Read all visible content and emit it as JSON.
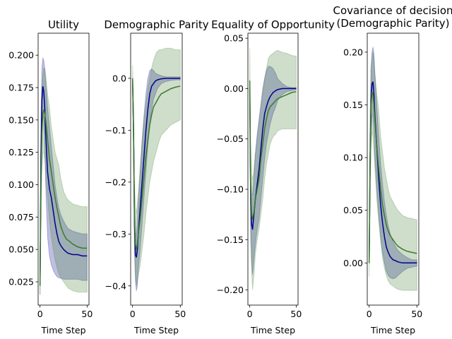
{
  "chart_data": [
    {
      "type": "line",
      "title": "Utility",
      "xlabel": "Time Step",
      "ylabel": "",
      "xlim": [
        -2,
        52
      ],
      "ylim": [
        0.007,
        0.217
      ],
      "xticks": [
        0,
        50
      ],
      "yticks": [
        0.025,
        0.05,
        0.075,
        0.1,
        0.125,
        0.15,
        0.175,
        0.2
      ],
      "ytick_labels": [
        "0.025",
        "0.050",
        "0.075",
        "0.100",
        "0.125",
        "0.150",
        "0.175",
        "0.200"
      ],
      "grid": false,
      "series": [
        {
          "color": "#00008b",
          "fill_color": "#00008b",
          "x": [
            0,
            1,
            2,
            3,
            4,
            5,
            6,
            7,
            8,
            10,
            12,
            14,
            16,
            18,
            20,
            22,
            25,
            28,
            30,
            35,
            40,
            45,
            50
          ],
          "mean": [
            0.022,
            0.12,
            0.165,
            0.176,
            0.172,
            0.16,
            0.14,
            0.125,
            0.11,
            0.097,
            0.09,
            0.08,
            0.07,
            0.062,
            0.056,
            0.053,
            0.05,
            0.048,
            0.047,
            0.046,
            0.046,
            0.045,
            0.045
          ],
          "upper": [
            0.032,
            0.15,
            0.19,
            0.198,
            0.196,
            0.19,
            0.18,
            0.17,
            0.16,
            0.145,
            0.13,
            0.115,
            0.1,
            0.09,
            0.082,
            0.077,
            0.072,
            0.068,
            0.066,
            0.064,
            0.063,
            0.062,
            0.062
          ],
          "lower": [
            0.015,
            0.09,
            0.14,
            0.155,
            0.15,
            0.13,
            0.1,
            0.08,
            0.06,
            0.045,
            0.038,
            0.034,
            0.031,
            0.029,
            0.028,
            0.028,
            0.027,
            0.027,
            0.027,
            0.027,
            0.027,
            0.026,
            0.026
          ]
        },
        {
          "color": "#3d7a2d",
          "fill_color": "#3d7a2d",
          "x": [
            0,
            1,
            2,
            3,
            4,
            5,
            6,
            8,
            10,
            12,
            14,
            16,
            18,
            20,
            22,
            25,
            28,
            30,
            35,
            40,
            45,
            50
          ],
          "mean": [
            0.022,
            0.1,
            0.14,
            0.155,
            0.158,
            0.155,
            0.15,
            0.135,
            0.12,
            0.11,
            0.1,
            0.09,
            0.082,
            0.075,
            0.068,
            0.062,
            0.058,
            0.057,
            0.054,
            0.052,
            0.051,
            0.051
          ],
          "upper": [
            0.032,
            0.13,
            0.17,
            0.185,
            0.19,
            0.19,
            0.185,
            0.17,
            0.16,
            0.145,
            0.135,
            0.125,
            0.12,
            0.115,
            0.105,
            0.095,
            0.09,
            0.088,
            0.085,
            0.084,
            0.083,
            0.083
          ],
          "lower": [
            0.015,
            0.07,
            0.11,
            0.125,
            0.125,
            0.12,
            0.11,
            0.09,
            0.072,
            0.06,
            0.05,
            0.042,
            0.036,
            0.031,
            0.028,
            0.025,
            0.022,
            0.02,
            0.018,
            0.017,
            0.017,
            0.017
          ]
        }
      ]
    },
    {
      "type": "line",
      "title": "Demographic Parity",
      "xlabel": "Time Step",
      "ylabel": "",
      "xlim": [
        -2,
        52
      ],
      "ylim": [
        -0.437,
        0.087
      ],
      "xticks": [
        0,
        50
      ],
      "yticks": [
        -0.4,
        -0.3,
        -0.2,
        -0.1,
        0.0
      ],
      "ytick_labels": [
        "−0.4",
        "−0.3",
        "−0.2",
        "−0.1",
        "0.0"
      ],
      "grid": false,
      "series": [
        {
          "color": "#00008b",
          "fill_color": "#00008b",
          "x": [
            0,
            1,
            2,
            3,
            4,
            5,
            6,
            8,
            10,
            12,
            14,
            16,
            18,
            20,
            22,
            24,
            26,
            30,
            35,
            40,
            45,
            50
          ],
          "mean": [
            0.0,
            -0.1,
            -0.28,
            -0.34,
            -0.345,
            -0.33,
            -0.3,
            -0.25,
            -0.2,
            -0.15,
            -0.1,
            -0.06,
            -0.03,
            -0.015,
            -0.01,
            -0.005,
            -0.003,
            -0.001,
            0.0,
            0.0,
            0.0,
            0.0
          ],
          "upper": [
            0.0,
            -0.06,
            -0.24,
            -0.3,
            -0.3,
            -0.28,
            -0.24,
            -0.18,
            -0.12,
            -0.07,
            -0.03,
            0.0,
            0.015,
            0.018,
            0.015,
            0.01,
            0.008,
            0.005,
            0.003,
            0.003,
            0.003,
            0.003
          ],
          "lower": [
            0.0,
            -0.14,
            -0.33,
            -0.39,
            -0.41,
            -0.4,
            -0.37,
            -0.33,
            -0.28,
            -0.23,
            -0.18,
            -0.13,
            -0.09,
            -0.06,
            -0.04,
            -0.03,
            -0.02,
            -0.01,
            -0.006,
            -0.004,
            -0.003,
            -0.003
          ]
        },
        {
          "color": "#3d7a2d",
          "fill_color": "#3d7a2d",
          "x": [
            0,
            1,
            2,
            3,
            4,
            5,
            6,
            8,
            10,
            12,
            14,
            16,
            18,
            20,
            22,
            25,
            28,
            30,
            35,
            40,
            45,
            50
          ],
          "mean": [
            0.0,
            -0.1,
            -0.27,
            -0.32,
            -0.33,
            -0.32,
            -0.3,
            -0.27,
            -0.23,
            -0.19,
            -0.15,
            -0.12,
            -0.09,
            -0.07,
            -0.055,
            -0.045,
            -0.035,
            -0.03,
            -0.025,
            -0.02,
            -0.017,
            -0.015
          ],
          "upper": [
            0.025,
            -0.05,
            -0.2,
            -0.25,
            -0.26,
            -0.24,
            -0.22,
            -0.17,
            -0.12,
            -0.08,
            -0.05,
            -0.02,
            0.0,
            0.02,
            0.035,
            0.05,
            0.055,
            0.055,
            0.058,
            0.058,
            0.055,
            0.055
          ],
          "lower": [
            -0.02,
            -0.15,
            -0.33,
            -0.38,
            -0.4,
            -0.39,
            -0.38,
            -0.36,
            -0.33,
            -0.3,
            -0.26,
            -0.23,
            -0.2,
            -0.18,
            -0.16,
            -0.14,
            -0.12,
            -0.11,
            -0.1,
            -0.09,
            -0.085,
            -0.08
          ]
        }
      ]
    },
    {
      "type": "line",
      "title": "Equality of Opportunity",
      "xlabel": "Time Step",
      "ylabel": "",
      "xlim": [
        -2,
        52
      ],
      "ylim": [
        -0.215,
        0.055
      ],
      "xticks": [
        0,
        50
      ],
      "yticks": [
        -0.2,
        -0.15,
        -0.1,
        -0.05,
        0.0,
        0.05
      ],
      "ytick_labels": [
        "−0.20",
        "−0.15",
        "−0.10",
        "−0.05",
        "0.00",
        "0.05"
      ],
      "grid": false,
      "series": [
        {
          "color": "#00008b",
          "fill_color": "#00008b",
          "x": [
            0,
            1,
            2,
            3,
            4,
            5,
            6,
            8,
            10,
            12,
            14,
            16,
            18,
            20,
            22,
            25,
            28,
            30,
            35,
            40,
            45,
            50
          ],
          "mean": [
            0.0,
            -0.11,
            -0.135,
            -0.14,
            -0.13,
            -0.12,
            -0.11,
            -0.095,
            -0.08,
            -0.06,
            -0.04,
            -0.025,
            -0.018,
            -0.012,
            -0.008,
            -0.004,
            -0.002,
            -0.001,
            0.0,
            0.0,
            0.0,
            0.0
          ],
          "upper": [
            0.0,
            -0.085,
            -0.105,
            -0.105,
            -0.095,
            -0.08,
            -0.065,
            -0.045,
            -0.03,
            -0.015,
            0.0,
            0.01,
            0.018,
            0.022,
            0.022,
            0.02,
            0.015,
            0.01,
            0.005,
            0.002,
            0.001,
            0.001
          ],
          "lower": [
            0.0,
            -0.14,
            -0.17,
            -0.185,
            -0.175,
            -0.165,
            -0.155,
            -0.14,
            -0.13,
            -0.11,
            -0.09,
            -0.07,
            -0.055,
            -0.045,
            -0.035,
            -0.025,
            -0.018,
            -0.012,
            -0.006,
            -0.003,
            -0.002,
            -0.001
          ]
        },
        {
          "color": "#3d7a2d",
          "fill_color": "#3d7a2d",
          "x": [
            0,
            1,
            2,
            3,
            4,
            5,
            6,
            8,
            10,
            12,
            14,
            16,
            18,
            20,
            22,
            25,
            28,
            30,
            35,
            40,
            45,
            50
          ],
          "mean": [
            0.008,
            -0.1,
            -0.125,
            -0.13,
            -0.125,
            -0.12,
            -0.11,
            -0.1,
            -0.09,
            -0.07,
            -0.055,
            -0.04,
            -0.03,
            -0.022,
            -0.018,
            -0.015,
            -0.012,
            -0.01,
            -0.008,
            -0.006,
            -0.004,
            -0.003
          ],
          "upper": [
            0.04,
            -0.06,
            -0.085,
            -0.09,
            -0.085,
            -0.075,
            -0.065,
            -0.05,
            -0.035,
            -0.02,
            -0.005,
            0.01,
            0.02,
            0.03,
            0.033,
            0.035,
            0.037,
            0.038,
            0.036,
            0.035,
            0.033,
            0.032
          ],
          "lower": [
            -0.02,
            -0.15,
            -0.18,
            -0.2,
            -0.19,
            -0.18,
            -0.165,
            -0.15,
            -0.14,
            -0.125,
            -0.11,
            -0.09,
            -0.075,
            -0.065,
            -0.055,
            -0.048,
            -0.045,
            -0.042,
            -0.04,
            -0.04,
            -0.04,
            -0.04
          ]
        }
      ]
    },
    {
      "type": "line",
      "title": "Covariance of decision\n(Demographic Parity)",
      "xlabel": "Time Step",
      "ylabel": "",
      "xlim": [
        -2,
        52
      ],
      "ylim": [
        -0.04,
        0.218
      ],
      "xticks": [
        0,
        50
      ],
      "yticks": [
        0.0,
        0.05,
        0.1,
        0.15,
        0.2
      ],
      "ytick_labels": [
        "0.00",
        "0.05",
        "0.10",
        "0.15",
        "0.20"
      ],
      "grid": false,
      "series": [
        {
          "color": "#00008b",
          "fill_color": "#00008b",
          "x": [
            0,
            1,
            2,
            3,
            4,
            5,
            6,
            8,
            10,
            12,
            14,
            16,
            18,
            20,
            22,
            25,
            28,
            30,
            35,
            40,
            45,
            50
          ],
          "mean": [
            0.0,
            0.1,
            0.155,
            0.17,
            0.172,
            0.16,
            0.14,
            0.11,
            0.08,
            0.055,
            0.038,
            0.025,
            0.015,
            0.01,
            0.006,
            0.003,
            0.002,
            0.001,
            0.0,
            0.0,
            0.0,
            0.0
          ],
          "upper": [
            0.0,
            0.13,
            0.185,
            0.2,
            0.205,
            0.198,
            0.18,
            0.15,
            0.12,
            0.095,
            0.075,
            0.058,
            0.045,
            0.035,
            0.028,
            0.02,
            0.015,
            0.012,
            0.008,
            0.005,
            0.003,
            0.003
          ],
          "lower": [
            0.0,
            0.07,
            0.12,
            0.14,
            0.14,
            0.125,
            0.1,
            0.07,
            0.045,
            0.025,
            0.01,
            0.0,
            -0.008,
            -0.012,
            -0.014,
            -0.015,
            -0.014,
            -0.012,
            -0.008,
            -0.005,
            -0.004,
            -0.003
          ]
        },
        {
          "color": "#3d7a2d",
          "fill_color": "#3d7a2d",
          "x": [
            0,
            1,
            2,
            3,
            4,
            5,
            6,
            8,
            10,
            12,
            14,
            16,
            18,
            20,
            22,
            25,
            28,
            30,
            35,
            40,
            45,
            50
          ],
          "mean": [
            0.0,
            0.1,
            0.15,
            0.162,
            0.16,
            0.15,
            0.135,
            0.11,
            0.09,
            0.07,
            0.055,
            0.045,
            0.036,
            0.03,
            0.026,
            0.022,
            0.018,
            0.016,
            0.013,
            0.011,
            0.01,
            0.009
          ],
          "upper": [
            0.0,
            0.14,
            0.185,
            0.195,
            0.2,
            0.195,
            0.18,
            0.16,
            0.145,
            0.12,
            0.105,
            0.09,
            0.08,
            0.07,
            0.063,
            0.058,
            0.053,
            0.05,
            0.045,
            0.043,
            0.042,
            0.041
          ],
          "lower": [
            -0.013,
            0.06,
            0.11,
            0.125,
            0.12,
            0.105,
            0.09,
            0.06,
            0.04,
            0.02,
            0.005,
            -0.005,
            -0.012,
            -0.017,
            -0.02,
            -0.022,
            -0.024,
            -0.025,
            -0.026,
            -0.026,
            -0.026,
            -0.026
          ]
        }
      ]
    }
  ]
}
